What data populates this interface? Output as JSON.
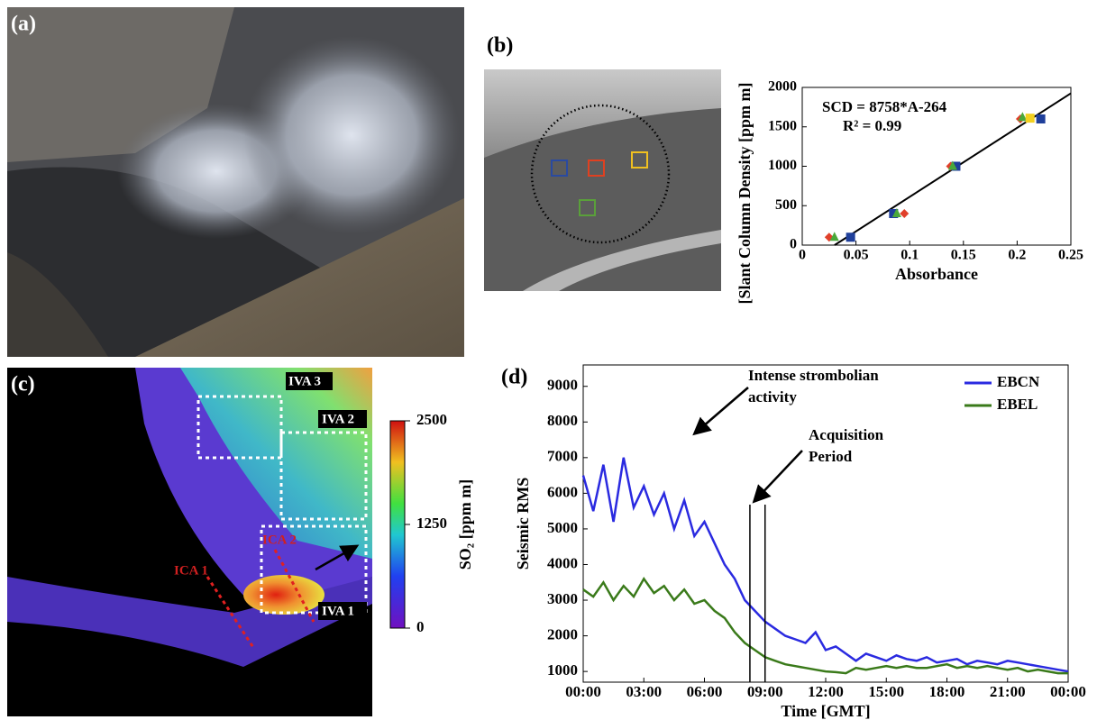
{
  "panels": {
    "a": {
      "label": "(a)"
    },
    "b": {
      "label": "(b)"
    },
    "c": {
      "label": "(c)",
      "ica": [
        "ICA 1",
        "ICA 2"
      ],
      "iva": [
        "IVA 1",
        "IVA 2",
        "IVA 3"
      ],
      "colorbar": {
        "title": "SO₂ [ppm m]",
        "lim": [
          0,
          2500
        ],
        "ticks": [
          0,
          1250,
          2500
        ]
      }
    },
    "d": {
      "label": "(d)"
    }
  },
  "chart_data": [
    {
      "type": "scatter",
      "x_label": "Absorbance",
      "y_label": "[Slant Column Density [ppm m]",
      "annotations": [
        "SCD = 8758*A-264",
        "R² = 0.99"
      ],
      "xlim": [
        0,
        0.25
      ],
      "ylim": [
        0,
        2000
      ],
      "xticks": [
        0,
        0.05,
        0.1,
        0.15,
        0.2,
        0.25
      ],
      "yticks": [
        0,
        500,
        1000,
        1500,
        2000
      ],
      "series": [
        {
          "color": "#1f3f9a",
          "marker": "square",
          "x": [
            0.045,
            0.085,
            0.143,
            0.222
          ],
          "values": [
            100,
            400,
            1000,
            1600
          ]
        },
        {
          "color": "#e0402a",
          "marker": "diamond",
          "x": [
            0.025,
            0.095,
            0.138,
            0.203
          ],
          "values": [
            100,
            400,
            1000,
            1600
          ]
        },
        {
          "color": "#4aa83a",
          "marker": "triangle",
          "x": [
            0.03,
            0.088,
            0.14,
            0.205
          ],
          "values": [
            100,
            400,
            1000,
            1620
          ]
        },
        {
          "color": "#f2d020",
          "marker": "square",
          "x": [
            0.212
          ],
          "values": [
            1610
          ]
        }
      ],
      "fit": {
        "color": "#000000",
        "x": [
          0.0301,
          0.25
        ],
        "values": [
          0,
          1925
        ]
      }
    },
    {
      "type": "line",
      "x_label": "Time [GMT]",
      "y_label": "Seismic RMS",
      "xlim": [
        0,
        24
      ],
      "ylim": [
        700,
        9600
      ],
      "xticks": [
        {
          "value": 0,
          "label": "00:00"
        },
        {
          "value": 3,
          "label": "03:00"
        },
        {
          "value": 6,
          "label": "06:00"
        },
        {
          "value": 9,
          "label": "09:00"
        },
        {
          "value": 12,
          "label": "12:00"
        },
        {
          "value": 15,
          "label": "15:00"
        },
        {
          "value": 18,
          "label": "18:00"
        },
        {
          "value": 21,
          "label": "21:00"
        },
        {
          "value": 24,
          "label": "00:00"
        }
      ],
      "yticks": [
        1000,
        2000,
        3000,
        4000,
        5000,
        6000,
        7000,
        8000,
        9000
      ],
      "x": [
        0,
        0.5,
        1,
        1.5,
        2,
        2.5,
        3,
        3.5,
        4,
        4.5,
        5,
        5.5,
        6,
        6.5,
        7,
        7.5,
        8,
        8.5,
        9,
        9.5,
        10,
        10.5,
        11,
        11.5,
        12,
        12.5,
        13,
        13.5,
        14,
        14.5,
        15,
        15.5,
        16,
        16.5,
        17,
        17.5,
        18,
        18.5,
        19,
        19.5,
        20,
        20.5,
        21,
        21.5,
        22,
        22.5,
        23,
        23.5,
        24
      ],
      "series": [
        {
          "name": "EBCN",
          "color": "#2a2ae0",
          "values": [
            6500,
            5500,
            6800,
            5200,
            7000,
            5600,
            6200,
            5400,
            6000,
            5000,
            5800,
            4800,
            5200,
            4600,
            4000,
            3600,
            3000,
            2700,
            2400,
            2200,
            2000,
            1900,
            1800,
            2100,
            1600,
            1700,
            1500,
            1300,
            1500,
            1400,
            1300,
            1450,
            1350,
            1300,
            1400,
            1250,
            1300,
            1350,
            1200,
            1300,
            1250,
            1200,
            1300,
            1250,
            1200,
            1150,
            1100,
            1050,
            1000
          ]
        },
        {
          "name": "EBEL",
          "color": "#3a7a1a",
          "values": [
            3300,
            3100,
            3500,
            3000,
            3400,
            3100,
            3600,
            3200,
            3400,
            3000,
            3300,
            2900,
            3000,
            2700,
            2500,
            2100,
            1800,
            1600,
            1400,
            1300,
            1200,
            1150,
            1100,
            1050,
            1000,
            980,
            950,
            1100,
            1050,
            1100,
            1150,
            1100,
            1150,
            1100,
            1100,
            1150,
            1200,
            1100,
            1150,
            1100,
            1150,
            1100,
            1050,
            1100,
            1000,
            1050,
            1000,
            950,
            950
          ]
        }
      ],
      "annotations": [
        {
          "text": [
            "Intense strombolian",
            "activity"
          ]
        },
        {
          "text": [
            "Acquisition",
            "Period"
          ]
        }
      ],
      "acquisition_lines": [
        8.25,
        9
      ]
    }
  ]
}
